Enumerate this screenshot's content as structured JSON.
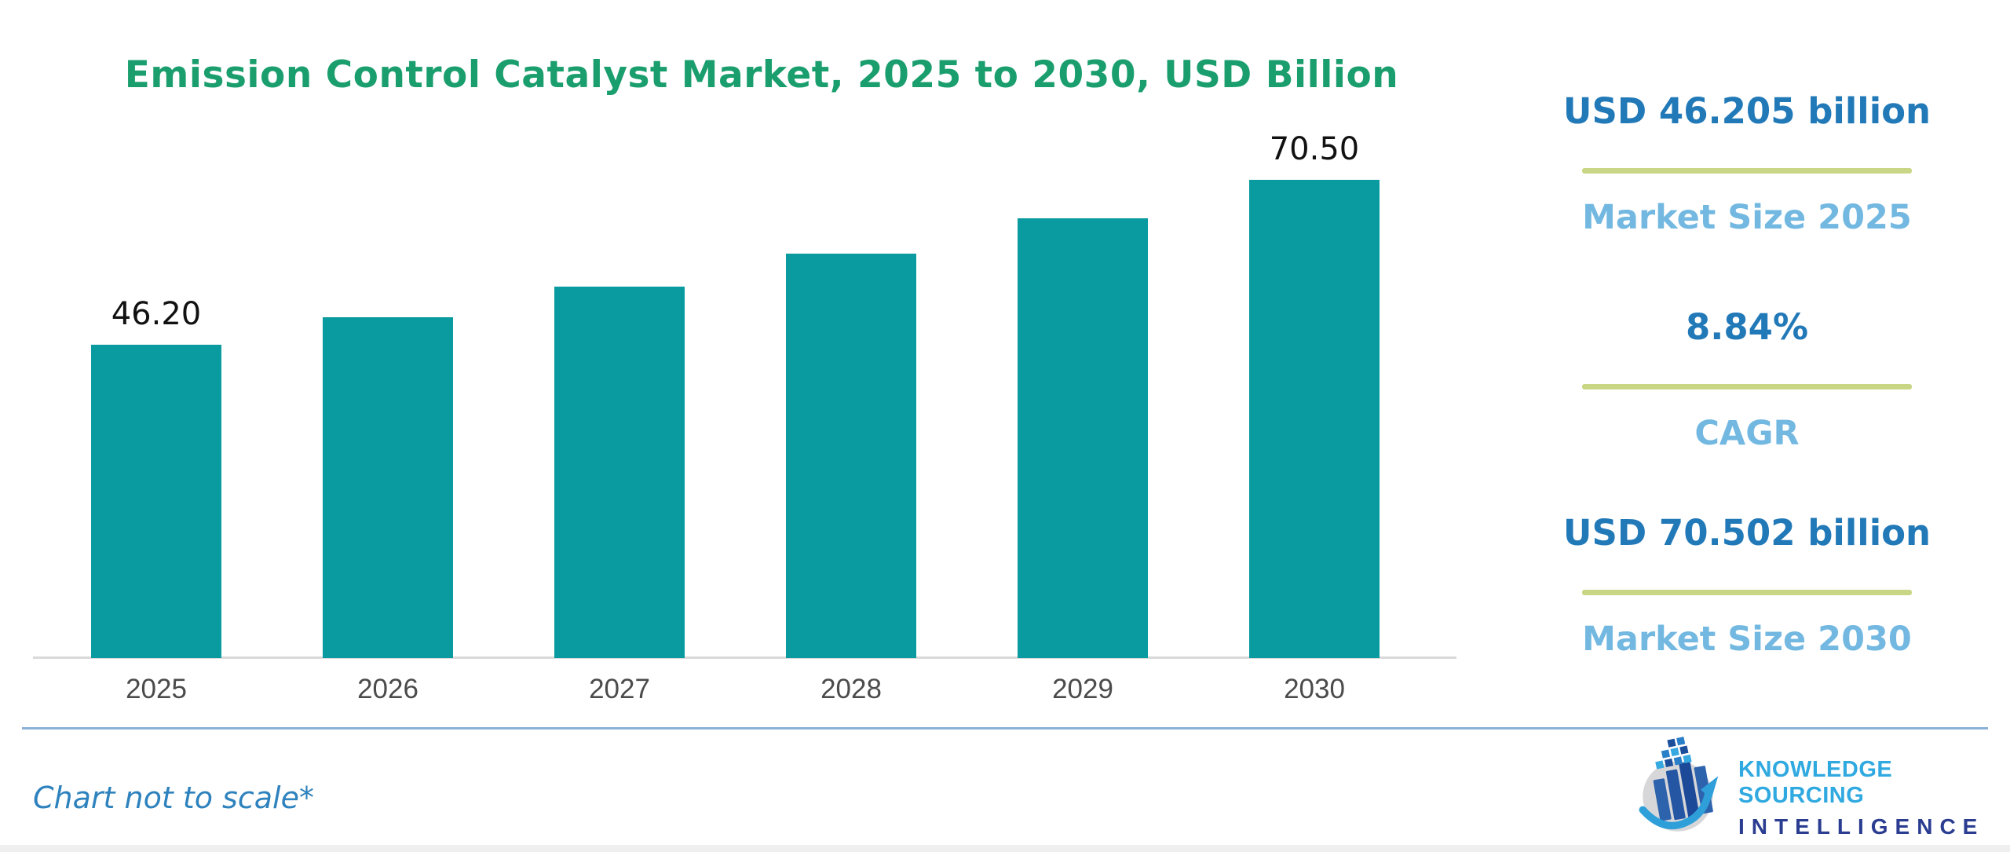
{
  "title": {
    "text": "Emission Control Catalyst Market, 2025 to 2030, USD Billion",
    "color": "#1a9e6e"
  },
  "chart_data": {
    "type": "bar",
    "title": "Emission Control Catalyst Market, 2025 to 2030, USD Billion",
    "categories": [
      "2025",
      "2026",
      "2027",
      "2028",
      "2029",
      "2030"
    ],
    "values": [
      46.2,
      50.28,
      54.73,
      59.57,
      64.83,
      70.5
    ],
    "bar_labels": [
      "46.20",
      "",
      "",
      "",
      "",
      "70.50"
    ],
    "xlabel": "",
    "ylabel": "",
    "ylim": [
      0,
      78
    ],
    "grid": false,
    "legend": false,
    "bar_color": "#0a9ba0",
    "note": "Chart not to scale*"
  },
  "stats": [
    {
      "value": "USD 46.205 billion",
      "label": "Market Size 2025"
    },
    {
      "value": "8.84%",
      "label": "CAGR"
    },
    {
      "value": "USD 70.502 billion",
      "label": "Market Size 2030"
    }
  ],
  "footer": {
    "note": "Chart not to scale*"
  },
  "logo": {
    "line1": "KNOWLEDGE SOURCING",
    "line2": "INTELLIGENCE"
  },
  "colors": {
    "bar": "#0a9ba0",
    "title_green": "#1a9e6e",
    "stat_value_blue": "#2279b8",
    "stat_label_blue": "#72b8e1",
    "stat_rule_olive": "#c8d685",
    "note_blue": "#2e82bd",
    "axis_line": "#d9d9d9",
    "tick_text": "#4b4b4b",
    "divider_blue": "#8ab1d6"
  }
}
